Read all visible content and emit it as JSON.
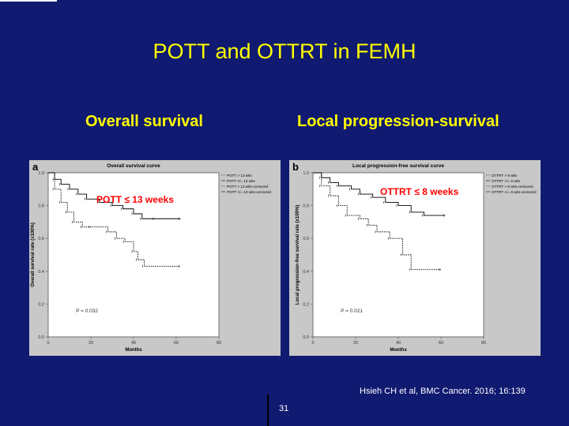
{
  "slide": {
    "title": "POTT and OTTRT in FEMH",
    "left_heading": "Overall survival",
    "right_heading": "Local progression-survival",
    "left_annotation": "POTT ≤ 13 weeks",
    "right_annotation": "OTTRT ≤ 8 weeks",
    "citation": "Hsieh CH et al, BMC Cancer. 2016; 16:139",
    "page_number": "31"
  },
  "colors": {
    "background": "#101a70",
    "title": "#ffff00",
    "annotation": "#ff0000",
    "text": "#ffffff"
  },
  "chart_data": [
    {
      "type": "line",
      "panel_label": "a",
      "title": "Overall survival curve",
      "xlabel": "Months",
      "ylabel": "Overall survival rate (x100%)",
      "xlim": [
        0,
        80
      ],
      "ylim": [
        0,
        1.0
      ],
      "x_ticks": [
        0,
        20,
        40,
        60,
        80
      ],
      "y_ticks": [
        "0.0",
        "0.2",
        "0.4",
        "0.6",
        "0.8",
        "1.0"
      ],
      "p_value": "P = 0.032",
      "legend_position": "top-right",
      "legend": [
        "POTT > 13 wks",
        "POTT </= 13 wks",
        "POTT > 13 wks-censored",
        "POTT </= 13 wks-censored"
      ],
      "series": [
        {
          "name": "POTT > 13 wks",
          "style": "dotted",
          "x": [
            0,
            3,
            6,
            9,
            12,
            16,
            20,
            28,
            32,
            36,
            40,
            42,
            45,
            62
          ],
          "y": [
            1.0,
            0.9,
            0.82,
            0.76,
            0.7,
            0.67,
            0.67,
            0.64,
            0.6,
            0.58,
            0.52,
            0.47,
            0.43,
            0.43
          ]
        },
        {
          "name": "POTT </= 13 wks",
          "style": "solid",
          "x": [
            0,
            3,
            6,
            10,
            14,
            18,
            24,
            30,
            35,
            40,
            44,
            50,
            62
          ],
          "y": [
            1.0,
            0.96,
            0.93,
            0.9,
            0.87,
            0.84,
            0.82,
            0.8,
            0.78,
            0.75,
            0.72,
            0.72,
            0.72
          ]
        }
      ]
    },
    {
      "type": "line",
      "panel_label": "b",
      "title": "Local progression-free survival curve",
      "xlabel": "Months",
      "ylabel": "Local progression-free survival rate (x100%)",
      "xlim": [
        0,
        80
      ],
      "ylim": [
        0,
        1.0
      ],
      "x_ticks": [
        0,
        20,
        40,
        60,
        80
      ],
      "y_ticks": [
        "0.0",
        "0.2",
        "0.4",
        "0.6",
        "0.8",
        "1.0"
      ],
      "p_value": "P = 0.021",
      "legend_position": "top-right",
      "legend": [
        "OTTRT > 8 wks",
        "OTTRT </= 8 wks",
        "OTTRT > 8 wks-censored",
        "OTTRT </= 8 wks-censored"
      ],
      "series": [
        {
          "name": "OTTRT > 8 wks",
          "style": "dotted",
          "x": [
            0,
            4,
            8,
            12,
            16,
            22,
            26,
            30,
            36,
            42,
            46,
            60
          ],
          "y": [
            1.0,
            0.92,
            0.86,
            0.8,
            0.74,
            0.72,
            0.68,
            0.64,
            0.6,
            0.5,
            0.41,
            0.41
          ]
        },
        {
          "name": "OTTRT </= 8 wks",
          "style": "solid",
          "x": [
            0,
            4,
            8,
            12,
            18,
            22,
            28,
            34,
            40,
            46,
            52,
            62
          ],
          "y": [
            1.0,
            0.97,
            0.94,
            0.92,
            0.9,
            0.87,
            0.85,
            0.82,
            0.8,
            0.76,
            0.74,
            0.74
          ]
        }
      ]
    }
  ]
}
